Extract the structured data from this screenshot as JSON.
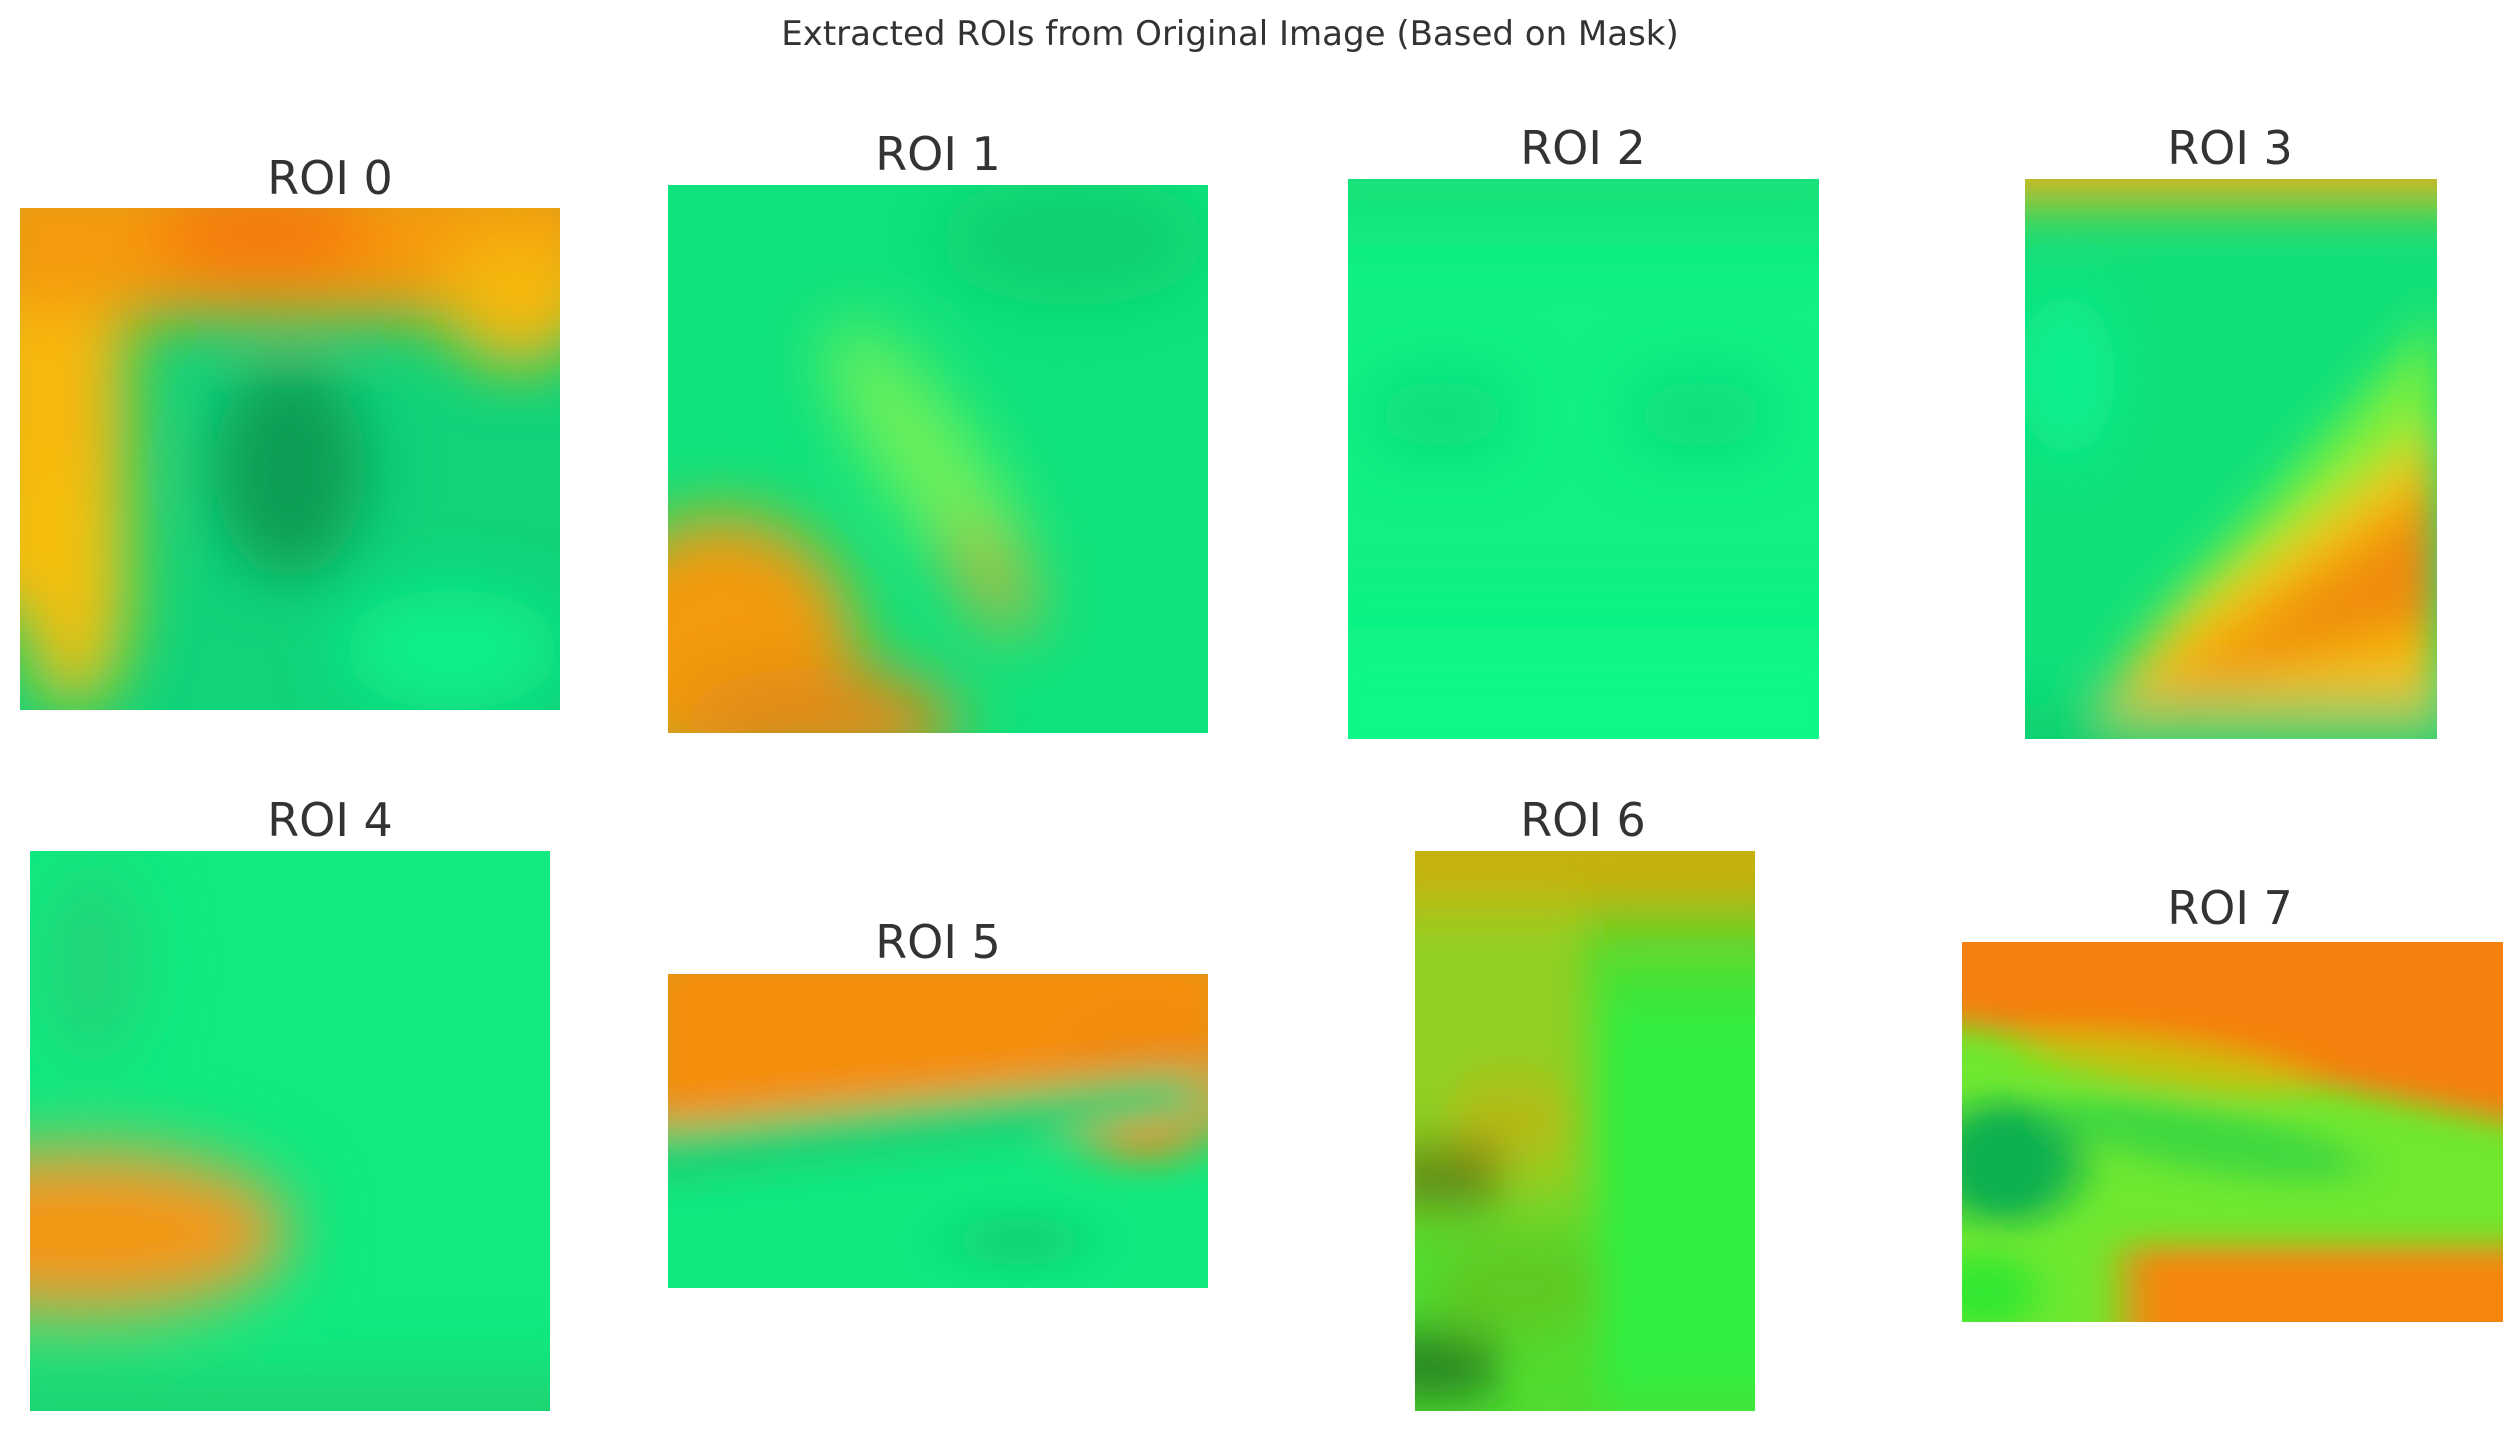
{
  "figure": {
    "title": "Extracted ROIs from Original Image (Based on Mask)"
  },
  "rois": [
    {
      "label": "ROI 0"
    },
    {
      "label": "ROI 1"
    },
    {
      "label": "ROI 2"
    },
    {
      "label": "ROI 3"
    },
    {
      "label": "ROI 4"
    },
    {
      "label": "ROI 5"
    },
    {
      "label": "ROI 6"
    },
    {
      "label": "ROI 7"
    }
  ],
  "colors": {
    "background": "#ffffff",
    "text": "#333333",
    "orange": "#f98a08",
    "yellow": "#f5c010",
    "green": "#0ef585",
    "lime": "#78ef38",
    "dark_green": "#0f9c4a"
  }
}
